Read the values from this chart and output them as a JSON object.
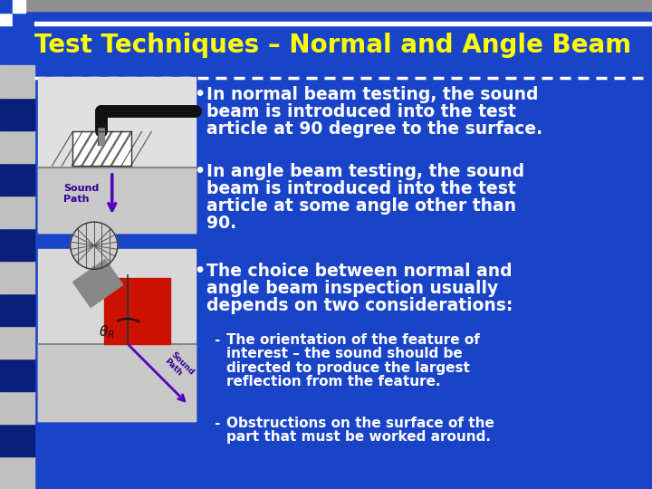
{
  "title": "Test Techniques – Normal and Angle Beam",
  "title_color": "#FFFF00",
  "title_fontsize": 20,
  "bg_color": "#1a44c8",
  "dark_blue": "#0d2b8e",
  "stripe_gray": "#c0c0c0",
  "stripe_dark": "#0a1f7a",
  "bullet1_line1": "In normal beam testing, the sound",
  "bullet1_line2": "beam is introduced into the test",
  "bullet1_line3": "article at 90 degree to the surface.",
  "bullet2_line1": "In angle beam testing, the sound",
  "bullet2_line2": "beam is introduced into the test",
  "bullet2_line3": "article at some angle other than",
  "bullet2_line4": "90.",
  "bullet3_line1": "The choice between normal and",
  "bullet3_line2": "angle beam inspection usually",
  "bullet3_line3": "depends on two considerations:",
  "sub1_line1": "The orientation of the feature of",
  "sub1_line2": "interest – the sound should be",
  "sub1_line3": "directed to produce the largest",
  "sub1_line4": "reflection from the feature.",
  "sub2_line1": "Obstructions on the surface of the",
  "sub2_line2": "part that must be worked around.",
  "text_color": "#ffffff",
  "white": "#ffffff",
  "figsize": [
    7.2,
    5.4
  ],
  "dpi": 100
}
